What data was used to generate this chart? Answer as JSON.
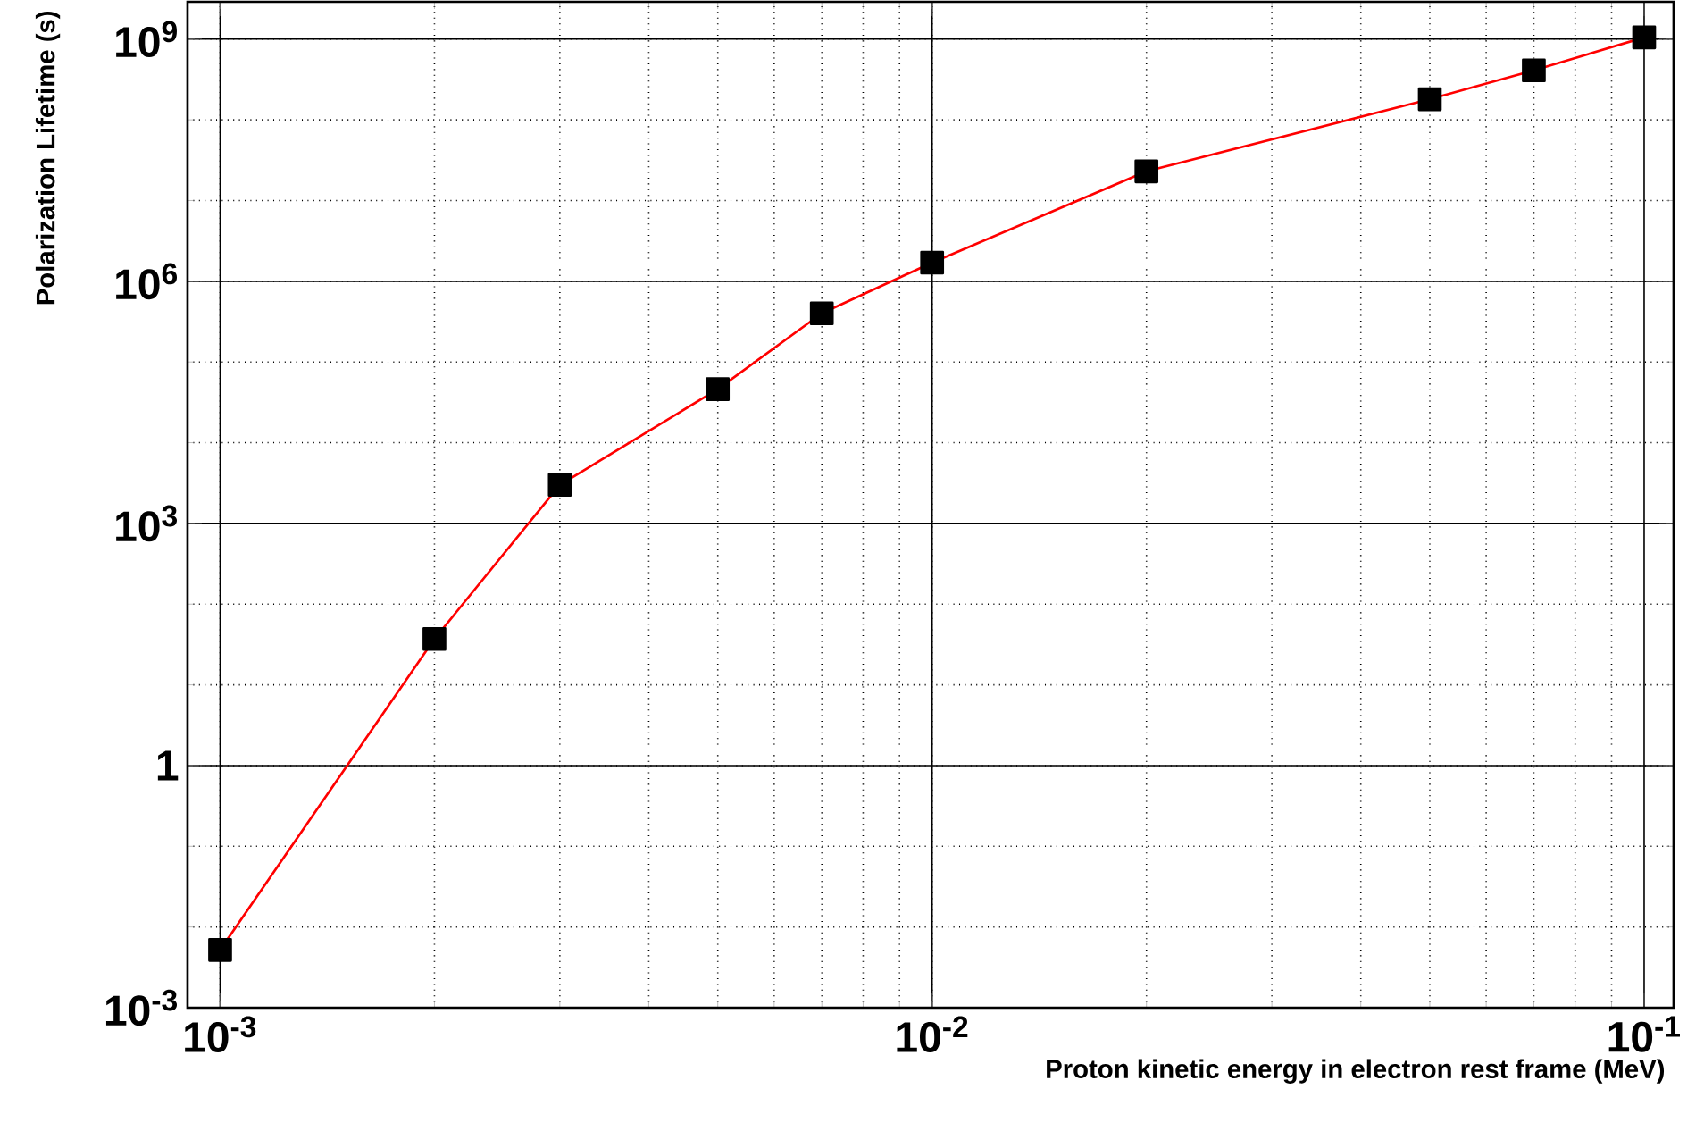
{
  "chart_data": {
    "type": "line",
    "xlabel": "Proton kinetic energy in electron rest frame (MeV)",
    "ylabel": "Polarization Lifetime (s)",
    "log": "xy",
    "grid": true,
    "marker": "square",
    "line_style": "solid",
    "x": [
      0.001,
      0.002,
      0.003,
      0.005,
      0.007,
      0.01,
      0.02,
      0.05,
      0.07,
      0.1
    ],
    "series": [
      {
        "color": "#ff0000",
        "values": [
          0.0052,
          37,
          3000,
          46000,
          400000,
          1700000,
          23000000,
          180000000,
          410000000,
          1050000000
        ]
      }
    ],
    "xlim": [
      0.0009,
      0.11
    ],
    "ylim": [
      0.001,
      2900000000
    ],
    "xticks": [
      {
        "value": 0.001,
        "label": "10$^{-3}$"
      },
      {
        "value": 0.01,
        "label": "10$^{-2}$"
      },
      {
        "value": 0.1,
        "label": "10$^{-1}$"
      }
    ],
    "yticks": [
      {
        "value": 0.001,
        "label": "10$^{-3}$"
      },
      {
        "value": 1,
        "label": "1"
      },
      {
        "value": 1000,
        "label": "10$^{3}$"
      },
      {
        "value": 1000000,
        "label": "10$^{6}$"
      },
      {
        "value": 1000000000,
        "label": "10$^{9}$"
      }
    ]
  }
}
